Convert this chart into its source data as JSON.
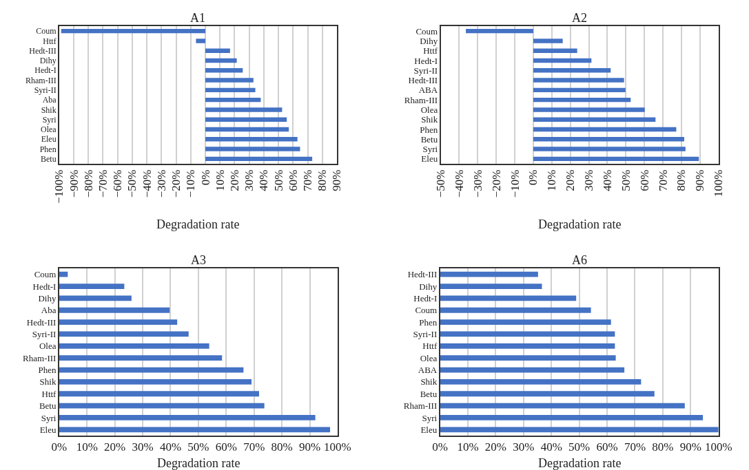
{
  "chart_data": [
    {
      "type": "bar",
      "orientation": "horizontal",
      "title": "A1",
      "xlabel": "Degradation rate",
      "categories": [
        "Coum",
        "Httf",
        "Hedt-III",
        "Dihy",
        "Hedt-I",
        "Rham-III",
        "Syri-II",
        "Aba",
        "Shik",
        "Syri",
        "Olea",
        "Eleu",
        "Phen",
        "Betu"
      ],
      "series": [
        {
          "color": "#4472c4",
          "values": [
            -98.6,
            -6.4,
            16.9,
            21.5,
            25.6,
            32.9,
            34.2,
            37.9,
            52.5,
            55.7,
            57.1,
            63.0,
            64.8,
            73.1
          ]
        }
      ],
      "xlim": [
        -100,
        90
      ],
      "xticks": [
        {
          "value": -100,
          "label": "−100%"
        },
        {
          "value": -90,
          "label": "−90%"
        },
        {
          "value": -80,
          "label": "−80%"
        },
        {
          "value": -70,
          "label": "−70%"
        },
        {
          "value": -60,
          "label": "−60%"
        },
        {
          "value": -50,
          "label": "−50%"
        },
        {
          "value": -40,
          "label": "−40%"
        },
        {
          "value": -30,
          "label": "−30%"
        },
        {
          "value": -20,
          "label": "−20%"
        },
        {
          "value": -10,
          "label": "−10%"
        },
        {
          "value": 0,
          "label": "0%"
        },
        {
          "value": 10,
          "label": "10%"
        },
        {
          "value": 20,
          "label": "20%"
        },
        {
          "value": 30,
          "label": "30%"
        },
        {
          "value": 40,
          "label": "40%"
        },
        {
          "value": 50,
          "label": "50%"
        },
        {
          "value": 60,
          "label": "60%"
        },
        {
          "value": 70,
          "label": "70%"
        },
        {
          "value": 80,
          "label": "80%"
        },
        {
          "value": 90,
          "label": "90%"
        }
      ],
      "grid": "x"
    },
    {
      "type": "bar",
      "orientation": "horizontal",
      "title": "A2",
      "xlabel": "Degradation rate",
      "categories": [
        "Coum",
        "Dihy",
        "Httf",
        "Hedt-I",
        "Syri-II",
        "Hedt-III",
        "ABA",
        "Rham-III",
        "Olea",
        "Shik",
        "Phen",
        "Betu",
        "Syri",
        "Eleu"
      ],
      "series": [
        {
          "color": "#4472c4",
          "values": [
            -36.4,
            15.9,
            23.7,
            31.4,
            41.8,
            49.0,
            49.8,
            52.6,
            60.2,
            66.0,
            77.2,
            81.5,
            82.2,
            89.4
          ]
        }
      ],
      "xlim": [
        -50,
        100
      ],
      "xticks": [
        {
          "value": -50,
          "label": "−50%"
        },
        {
          "value": -40,
          "label": "−40%"
        },
        {
          "value": -30,
          "label": "−30%"
        },
        {
          "value": -20,
          "label": "−20%"
        },
        {
          "value": -10,
          "label": "−10%"
        },
        {
          "value": 0,
          "label": "0%"
        },
        {
          "value": 10,
          "label": "10%"
        },
        {
          "value": 20,
          "label": "20%"
        },
        {
          "value": 30,
          "label": "30%"
        },
        {
          "value": 40,
          "label": "40%"
        },
        {
          "value": 50,
          "label": "50%"
        },
        {
          "value": 60,
          "label": "60%"
        },
        {
          "value": 70,
          "label": "70%"
        },
        {
          "value": 80,
          "label": "80%"
        },
        {
          "value": 90,
          "label": "90%"
        },
        {
          "value": 100,
          "label": "100%"
        }
      ],
      "grid": "x"
    },
    {
      "type": "bar",
      "orientation": "horizontal",
      "title": "A3",
      "xlabel": "Degradation rate",
      "categories": [
        "Coum",
        "Hedt-I",
        "Dihy",
        "Aba",
        "Hedt-III",
        "Syri-II",
        "Olea",
        "Rham-III",
        "Phen",
        "Shik",
        "Httf",
        "Betu",
        "Syri",
        "Eleu"
      ],
      "series": [
        {
          "color": "#4472c4",
          "values": [
            3.1,
            23.4,
            26.0,
            39.7,
            42.4,
            46.5,
            53.9,
            58.5,
            66.2,
            69.1,
            71.8,
            73.7,
            92.0,
            97.3
          ]
        }
      ],
      "xlim": [
        0,
        100
      ],
      "xticks": [
        {
          "value": 0,
          "label": "0%"
        },
        {
          "value": 10,
          "label": "10%"
        },
        {
          "value": 20,
          "label": "20%"
        },
        {
          "value": 30,
          "label": "30%"
        },
        {
          "value": 40,
          "label": "40%"
        },
        {
          "value": 50,
          "label": "50%"
        },
        {
          "value": 60,
          "label": "60%"
        },
        {
          "value": 70,
          "label": "70%"
        },
        {
          "value": 80,
          "label": "80%"
        },
        {
          "value": 90,
          "label": "90%"
        },
        {
          "value": 100,
          "label": "100%"
        }
      ],
      "grid": "x"
    },
    {
      "type": "bar",
      "orientation": "horizontal",
      "title": "A6",
      "xlabel": "Degradation rate",
      "categories": [
        "Hedt-III",
        "Dihy",
        "Hedt-I",
        "Coum",
        "Phen",
        "Syri-II",
        "Httf",
        "Olea",
        "ABA",
        "Shik",
        "Betu",
        "Rham-III",
        "Syri",
        "Eleu"
      ],
      "series": [
        {
          "color": "#4472c4",
          "values": [
            35.2,
            36.6,
            48.9,
            54.2,
            61.4,
            62.8,
            62.8,
            63.1,
            66.2,
            72.2,
            77.0,
            87.9,
            94.4,
            100
          ]
        }
      ],
      "xlim": [
        0,
        100
      ],
      "xticks": [
        {
          "value": 0,
          "label": "0%"
        },
        {
          "value": 10,
          "label": "10%"
        },
        {
          "value": 20,
          "label": "20%"
        },
        {
          "value": 30,
          "label": "30%"
        },
        {
          "value": 40,
          "label": "40%"
        },
        {
          "value": 50,
          "label": "50%"
        },
        {
          "value": 60,
          "label": "60%"
        },
        {
          "value": 70,
          "label": "70%"
        },
        {
          "value": 80,
          "label": "80%"
        },
        {
          "value": 90,
          "label": "90%"
        },
        {
          "value": 100,
          "label": "100%"
        }
      ],
      "grid": "x"
    }
  ]
}
